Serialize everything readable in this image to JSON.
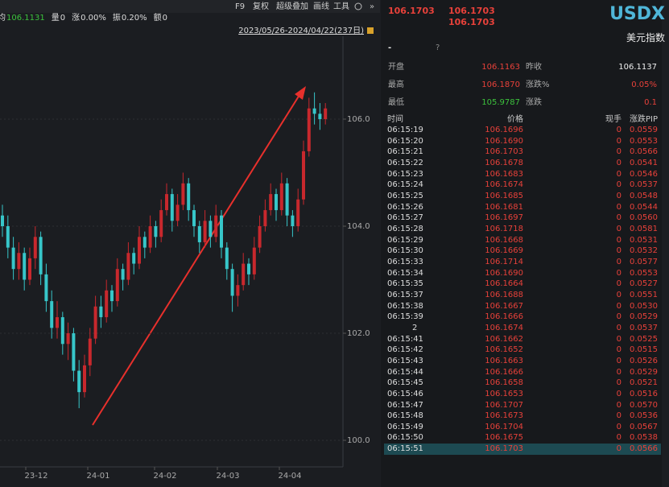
{
  "toolbar": {
    "items": [
      "F9",
      "复权",
      "超级叠加",
      "画线",
      "工具"
    ]
  },
  "chart": {
    "stats": [
      {
        "label": "均",
        "value": "106.1131"
      },
      {
        "label": "量",
        "value": "0"
      },
      {
        "label": "涨",
        "value": "0.00%"
      },
      {
        "label": "振",
        "value": "0.20%"
      },
      {
        "label": "额",
        "value": "0"
      }
    ],
    "range": "2023/05/26-2024/04/22(237日)",
    "yticks": [
      {
        "value": 106,
        "label": "106.0"
      },
      {
        "value": 104,
        "label": "104.0"
      },
      {
        "value": 102,
        "label": "102.0"
      },
      {
        "value": 100,
        "label": "100.0"
      }
    ],
    "xlabels": [
      "23-12",
      "24-01",
      "24-02",
      "24-03",
      "24-04"
    ],
    "candles": [
      [
        104.2,
        104.4,
        103.8,
        104.0
      ],
      [
        104.0,
        104.2,
        103.4,
        103.6
      ],
      [
        103.6,
        103.8,
        103.0,
        103.2
      ],
      [
        103.2,
        103.7,
        103.0,
        103.5
      ],
      [
        103.5,
        103.6,
        102.8,
        103.0
      ],
      [
        103.0,
        103.6,
        102.9,
        103.4
      ],
      [
        103.4,
        104.0,
        103.2,
        103.8
      ],
      [
        103.8,
        103.9,
        102.9,
        103.1
      ],
      [
        103.1,
        103.3,
        102.4,
        102.6
      ],
      [
        102.6,
        102.8,
        101.9,
        102.1
      ],
      [
        102.1,
        102.6,
        101.9,
        102.3
      ],
      [
        102.3,
        102.4,
        101.6,
        101.8
      ],
      [
        101.8,
        102.2,
        101.5,
        102.0
      ],
      [
        102.0,
        102.1,
        101.1,
        101.3
      ],
      [
        101.3,
        101.5,
        100.6,
        100.9
      ],
      [
        100.9,
        101.6,
        100.8,
        101.4
      ],
      [
        101.4,
        102.1,
        101.2,
        101.9
      ],
      [
        101.9,
        102.7,
        101.8,
        102.5
      ],
      [
        102.5,
        102.7,
        102.1,
        102.3
      ],
      [
        102.3,
        103.0,
        102.2,
        102.8
      ],
      [
        102.8,
        102.9,
        102.4,
        102.6
      ],
      [
        102.6,
        103.4,
        102.5,
        103.2
      ],
      [
        103.2,
        103.3,
        102.8,
        103.0
      ],
      [
        103.0,
        103.7,
        102.9,
        103.5
      ],
      [
        103.5,
        103.6,
        103.1,
        103.3
      ],
      [
        103.3,
        104.0,
        103.2,
        103.8
      ],
      [
        103.8,
        103.9,
        103.4,
        103.6
      ],
      [
        103.6,
        104.2,
        103.5,
        104.0
      ],
      [
        104.0,
        104.1,
        103.6,
        103.8
      ],
      [
        103.8,
        104.5,
        103.7,
        104.3
      ],
      [
        104.3,
        104.8,
        104.2,
        104.6
      ],
      [
        104.6,
        104.7,
        103.9,
        104.1
      ],
      [
        104.1,
        104.6,
        104.0,
        104.4
      ],
      [
        104.4,
        105.0,
        104.3,
        104.8
      ],
      [
        104.8,
        104.9,
        104.1,
        104.3
      ],
      [
        104.3,
        104.4,
        103.8,
        104.0
      ],
      [
        104.0,
        104.1,
        103.5,
        103.7
      ],
      [
        103.7,
        104.3,
        103.6,
        104.1
      ],
      [
        104.1,
        104.2,
        103.6,
        103.8
      ],
      [
        103.8,
        104.4,
        103.7,
        104.2
      ],
      [
        104.2,
        104.3,
        103.4,
        103.6
      ],
      [
        103.6,
        103.7,
        103.0,
        103.2
      ],
      [
        103.2,
        103.3,
        102.4,
        102.7
      ],
      [
        102.7,
        103.1,
        102.5,
        102.9
      ],
      [
        102.9,
        103.5,
        102.8,
        103.3
      ],
      [
        103.3,
        103.4,
        102.9,
        103.1
      ],
      [
        103.1,
        103.8,
        103.0,
        103.6
      ],
      [
        103.6,
        104.2,
        103.5,
        104.0
      ],
      [
        104.0,
        104.5,
        103.9,
        104.3
      ],
      [
        104.3,
        104.8,
        104.2,
        104.6
      ],
      [
        104.6,
        104.7,
        104.1,
        104.3
      ],
      [
        104.3,
        105.0,
        104.2,
        104.8
      ],
      [
        104.8,
        104.9,
        104.0,
        104.2
      ],
      [
        104.2,
        104.3,
        103.8,
        104.0
      ],
      [
        104.0,
        104.7,
        103.9,
        104.5
      ],
      [
        104.5,
        105.6,
        104.4,
        105.4
      ],
      [
        105.4,
        106.4,
        105.3,
        106.2
      ],
      [
        106.2,
        106.5,
        105.9,
        106.1
      ],
      [
        106.1,
        106.3,
        105.8,
        106.0
      ],
      [
        106.0,
        106.3,
        105.9,
        106.2
      ]
    ]
  },
  "quote": {
    "last": "106.1703",
    "bid": "106.1703",
    "ask": "106.1703",
    "symbol": "USDX",
    "name": "美元指数",
    "dash": "-",
    "help": "?",
    "info": [
      [
        "开盘",
        "106.1163",
        "昨收",
        "106.1137"
      ],
      [
        "最高",
        "106.1870",
        "涨跌%",
        "0.05%"
      ],
      [
        "最低",
        "105.9787",
        "涨跌",
        "0.1"
      ]
    ]
  },
  "ticks": {
    "header": [
      "时间",
      "价格",
      "现手",
      "涨跌PIP"
    ],
    "rows": [
      [
        "06:15:19",
        "106.1696",
        "0",
        "0.0559"
      ],
      [
        "06:15:20",
        "106.1690",
        "0",
        "0.0553"
      ],
      [
        "06:15:21",
        "106.1703",
        "0",
        "0.0566"
      ],
      [
        "06:15:22",
        "106.1678",
        "0",
        "0.0541"
      ],
      [
        "06:15:23",
        "106.1683",
        "0",
        "0.0546"
      ],
      [
        "06:15:24",
        "106.1674",
        "0",
        "0.0537"
      ],
      [
        "06:15:25",
        "106.1685",
        "0",
        "0.0548"
      ],
      [
        "06:15:26",
        "106.1681",
        "0",
        "0.0544"
      ],
      [
        "06:15:27",
        "106.1697",
        "0",
        "0.0560"
      ],
      [
        "06:15:28",
        "106.1718",
        "0",
        "0.0581"
      ],
      [
        "06:15:29",
        "106.1668",
        "0",
        "0.0531"
      ],
      [
        "06:15:30",
        "106.1669",
        "0",
        "0.0532"
      ],
      [
        "06:15:33",
        "106.1714",
        "0",
        "0.0577"
      ],
      [
        "06:15:34",
        "106.1690",
        "0",
        "0.0553"
      ],
      [
        "06:15:35",
        "106.1664",
        "0",
        "0.0527"
      ],
      [
        "06:15:37",
        "106.1688",
        "0",
        "0.0551"
      ],
      [
        "06:15:38",
        "106.1667",
        "0",
        "0.0530"
      ],
      [
        "06:15:39",
        "106.1666",
        "0",
        "0.0529"
      ],
      [
        "2",
        "106.1674",
        "0",
        "0.0537"
      ],
      [
        "06:15:41",
        "106.1662",
        "0",
        "0.0525"
      ],
      [
        "06:15:42",
        "106.1652",
        "0",
        "0.0515"
      ],
      [
        "06:15:43",
        "106.1663",
        "0",
        "0.0526"
      ],
      [
        "06:15:44",
        "106.1666",
        "0",
        "0.0529"
      ],
      [
        "06:15:45",
        "106.1658",
        "0",
        "0.0521"
      ],
      [
        "06:15:46",
        "106.1653",
        "0",
        "0.0516"
      ],
      [
        "06:15:47",
        "106.1707",
        "0",
        "0.0570"
      ],
      [
        "06:15:48",
        "106.1673",
        "0",
        "0.0536"
      ],
      [
        "06:15:49",
        "106.1704",
        "0",
        "0.0567"
      ],
      [
        "06:15:50",
        "106.1675",
        "0",
        "0.0538"
      ],
      [
        "06:15:51",
        "106.1703",
        "0",
        "0.0566"
      ]
    ]
  }
}
